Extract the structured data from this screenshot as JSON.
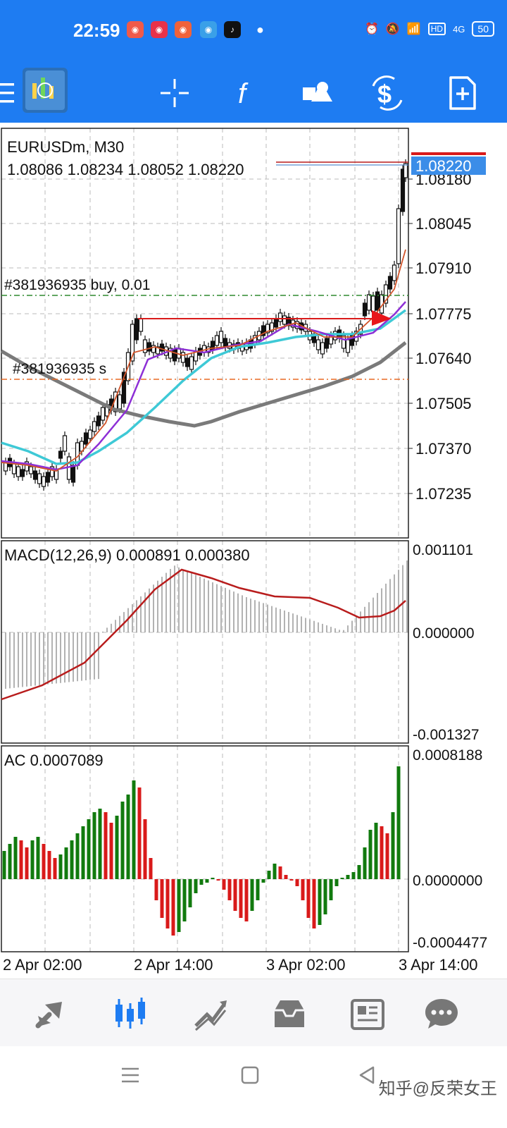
{
  "status_bar": {
    "time": "22:59",
    "network": "4G",
    "hd": "HD",
    "battery": "50",
    "app_badges": [
      "app-icon-1",
      "app-icon-2",
      "app-icon-3",
      "app-icon-4",
      "tiktok-icon"
    ]
  },
  "toolbar": {
    "menu_icon": "menu-icon",
    "logo_icon": "metatrader-logo-icon",
    "items": [
      "crosshair-icon",
      "indicators-icon",
      "objects-icon",
      "trade-icon",
      "new-order-icon"
    ]
  },
  "chart": {
    "symbol_timeframe": "EURUSDm, M30",
    "ohlc": "1.08086 1.08234 1.08052 1.08220",
    "current_price": "1.08220",
    "order_label": "#381936935 buy, 0.01",
    "sl_label": "#381936935 s",
    "price_ticks": [
      "1.08180",
      "1.08045",
      "1.07910",
      "1.07775",
      "1.07640",
      "1.07505",
      "1.07370",
      "1.07235"
    ],
    "time_ticks": [
      "2 Apr 02:00",
      "2 Apr 14:00",
      "3 Apr 02:00",
      "3 Apr 14:00"
    ],
    "colors": {
      "bull_bar": "#117a0e",
      "bear_bar": "#d91a1a",
      "ma_fast": "#d2542a",
      "ma_mid": "#8d2fd6",
      "ma_cyan": "#3ec9d6",
      "ma_slow": "#7a7a7a",
      "macd_signal": "#b81c1c",
      "current_price_bg": "#3b8de8"
    }
  },
  "macd": {
    "label": "MACD(12,26,9) 0.000891 0.000380",
    "ticks": [
      "0.001101",
      "0.000000",
      "-0.001327"
    ]
  },
  "ac": {
    "label": "AC 0.0007089",
    "ticks": [
      "0.0008188",
      "0.0000000",
      "-0.0004477"
    ]
  },
  "bottom_nav": {
    "items": [
      "quotes-icon",
      "chart-icon",
      "trade-icon",
      "history-icon",
      "news-icon",
      "messages-icon"
    ]
  },
  "system_nav": {
    "watermark": "知乎@反荣女王"
  }
}
